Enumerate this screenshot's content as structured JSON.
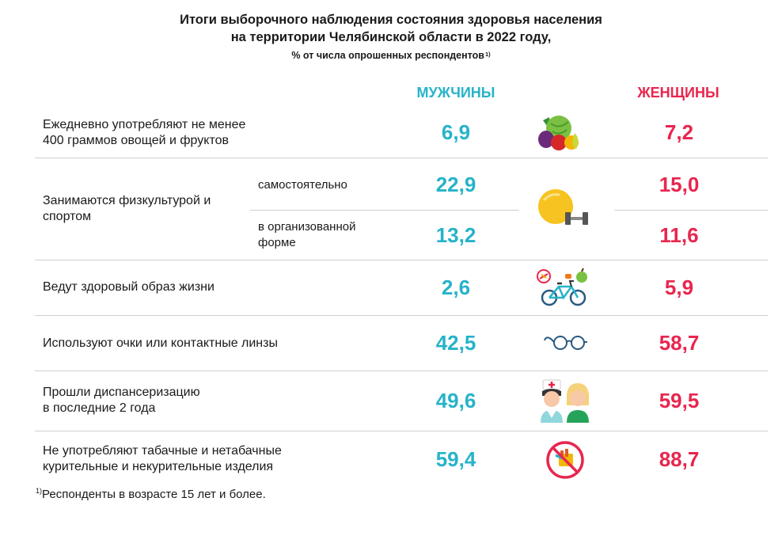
{
  "title": {
    "line1": "Итоги выборочного наблюдения состояния здоровья населения",
    "line2": "на территории Челябинской области в 2022 году,",
    "line3": "% от числа опрошенных респондентов",
    "line3_sup": "1)"
  },
  "columns": {
    "men": "МУЖЧИНЫ",
    "women": "ЖЕНЩИНЫ"
  },
  "rows": {
    "vegetables": {
      "label1": "Ежедневно употребляют не менее",
      "label2": "400 граммов овощей и фруктов",
      "men": "6,9",
      "women": "7,2",
      "icon": "fruits-vegetables-icon"
    },
    "sport": {
      "label1": "Занимаются физкультурой и",
      "label2": "спортом",
      "self": {
        "label": "самостоятельно",
        "men": "22,9",
        "women": "15,0"
      },
      "organized": {
        "label1": "в организованной",
        "label2": "форме",
        "men": "13,2",
        "women": "11,6"
      },
      "icon": "fitness-ball-dumbbell-icon"
    },
    "healthy": {
      "label": "Ведут здоровый образ жизни",
      "men": "2,6",
      "women": "5,9",
      "icon": "bicycle-healthy-icon"
    },
    "glasses": {
      "label": "Используют очки или контактные линзы",
      "men": "42,5",
      "women": "58,7",
      "icon": "glasses-icon"
    },
    "checkup": {
      "label1": "Прошли диспансеризацию",
      "label2": "в последние 2 года",
      "men": "49,6",
      "women": "59,5",
      "icon": "doctor-patient-icon"
    },
    "tobacco": {
      "label1": "Не употребляют табачные и нетабачные",
      "label2": "курительные и некурительные изделия",
      "men": "59,4",
      "women": "88,7",
      "icon": "no-smoking-icon"
    }
  },
  "footnote": {
    "sup": "1)",
    "text": "Респонденты в возрасте 15 лет и более."
  },
  "colors": {
    "men": "#26b3c9",
    "women": "#e8264e",
    "divider": "#cfcfcf"
  }
}
